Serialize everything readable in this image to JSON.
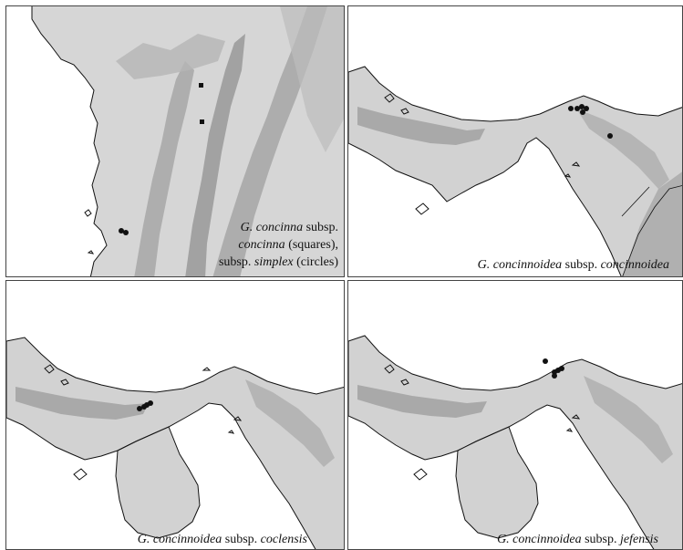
{
  "panels": [
    {
      "caption_lines": [
        [
          {
            "text": "G. concinna",
            "italic": true
          },
          {
            "text": " subsp.",
            "italic": false
          }
        ],
        [
          {
            "text": "concinna",
            "italic": true
          },
          {
            "text": " (squares),",
            "italic": false
          }
        ],
        [
          {
            "text": "subsp. ",
            "italic": false
          },
          {
            "text": "simplex",
            "italic": true
          },
          {
            "text": " (circles)",
            "italic": false
          }
        ]
      ]
    },
    {
      "caption_lines": [
        [
          {
            "text": "G. concinnoidea",
            "italic": true
          },
          {
            "text": " subsp. ",
            "italic": false
          },
          {
            "text": "concinnoidea",
            "italic": true
          }
        ]
      ]
    },
    {
      "caption_lines": [
        [
          {
            "text": "G. concinnoidea",
            "italic": true
          },
          {
            "text": " subsp. ",
            "italic": false
          },
          {
            "text": "coclensis",
            "italic": true
          }
        ]
      ]
    },
    {
      "caption_lines": [
        [
          {
            "text": "G. concinnoidea",
            "italic": true
          },
          {
            "text": " subsp. ",
            "italic": false
          },
          {
            "text": "jefensis",
            "italic": true
          }
        ]
      ]
    }
  ],
  "colors": {
    "sea": "#ffffff",
    "lowland": "#d4d4d4",
    "midland": "#bdbdbd",
    "highland": "#9a9a9a",
    "coast": "#111111",
    "marker": "#111111"
  }
}
